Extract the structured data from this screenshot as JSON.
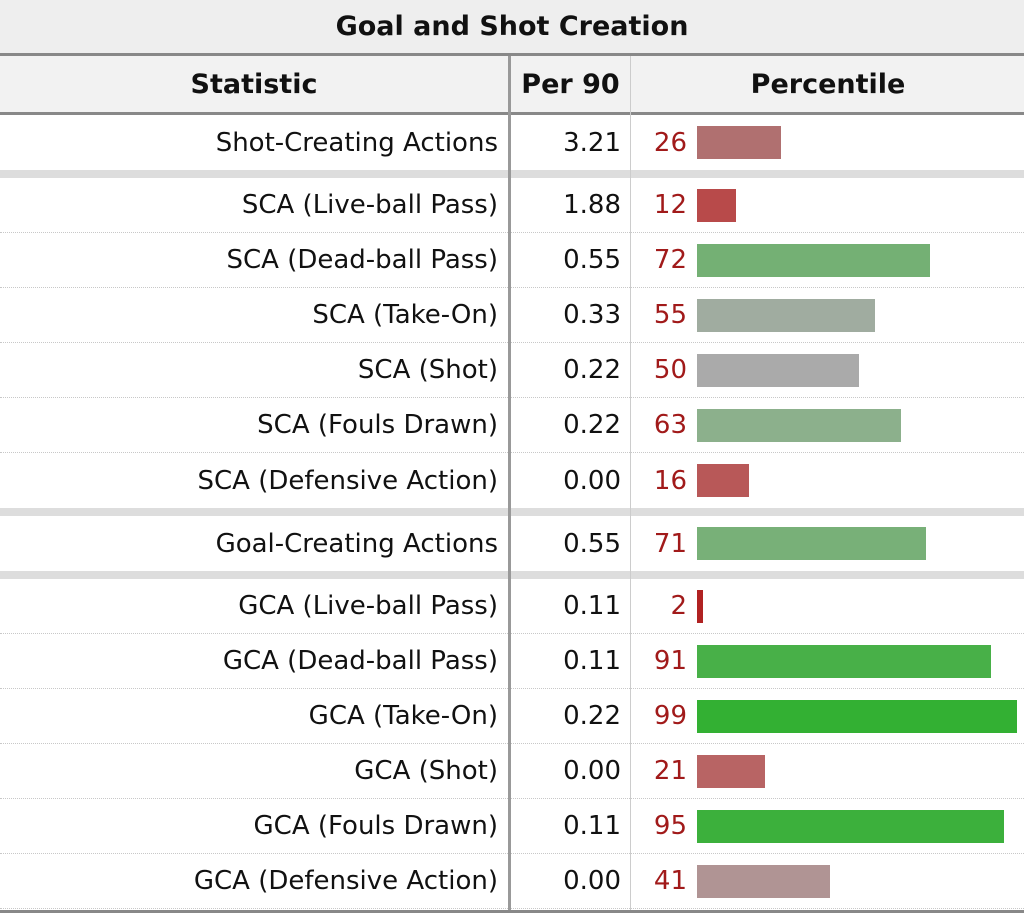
{
  "table": {
    "title": "Goal and Shot Creation",
    "headers": {
      "statistic": "Statistic",
      "per90": "Per 90",
      "percentile": "Percentile"
    },
    "groups": [
      {
        "rows": [
          {
            "statistic": "Shot-Creating Actions",
            "per90": "3.21",
            "percentile": 26,
            "bar_color": "#b07070"
          }
        ]
      },
      {
        "rows": [
          {
            "statistic": "SCA (Live-ball Pass)",
            "per90": "1.88",
            "percentile": 12,
            "bar_color": "#b84a4a"
          },
          {
            "statistic": "SCA (Dead-ball Pass)",
            "per90": "0.55",
            "percentile": 72,
            "bar_color": "#74b074"
          },
          {
            "statistic": "SCA (Take-On)",
            "per90": "0.33",
            "percentile": 55,
            "bar_color": "#a0aca0"
          },
          {
            "statistic": "SCA (Shot)",
            "per90": "0.22",
            "percentile": 50,
            "bar_color": "#aaaaaa"
          },
          {
            "statistic": "SCA (Fouls Drawn)",
            "per90": "0.22",
            "percentile": 63,
            "bar_color": "#8cb08c"
          },
          {
            "statistic": "SCA (Defensive Action)",
            "per90": "0.00",
            "percentile": 16,
            "bar_color": "#b85858"
          }
        ]
      },
      {
        "rows": [
          {
            "statistic": "Goal-Creating Actions",
            "per90": "0.55",
            "percentile": 71,
            "bar_color": "#78b078"
          }
        ]
      },
      {
        "rows": [
          {
            "statistic": "GCA (Live-ball Pass)",
            "per90": "0.11",
            "percentile": 2,
            "bar_color": "#b02222"
          },
          {
            "statistic": "GCA (Dead-ball Pass)",
            "per90": "0.11",
            "percentile": 91,
            "bar_color": "#48b048"
          },
          {
            "statistic": "GCA (Take-On)",
            "per90": "0.22",
            "percentile": 99,
            "bar_color": "#33b033"
          },
          {
            "statistic": "GCA (Shot)",
            "per90": "0.00",
            "percentile": 21,
            "bar_color": "#b86464"
          },
          {
            "statistic": "GCA (Fouls Drawn)",
            "per90": "0.11",
            "percentile": 95,
            "bar_color": "#3cb03c"
          },
          {
            "statistic": "GCA (Defensive Action)",
            "per90": "0.00",
            "percentile": 41,
            "bar_color": "#b09494"
          }
        ]
      }
    ]
  }
}
